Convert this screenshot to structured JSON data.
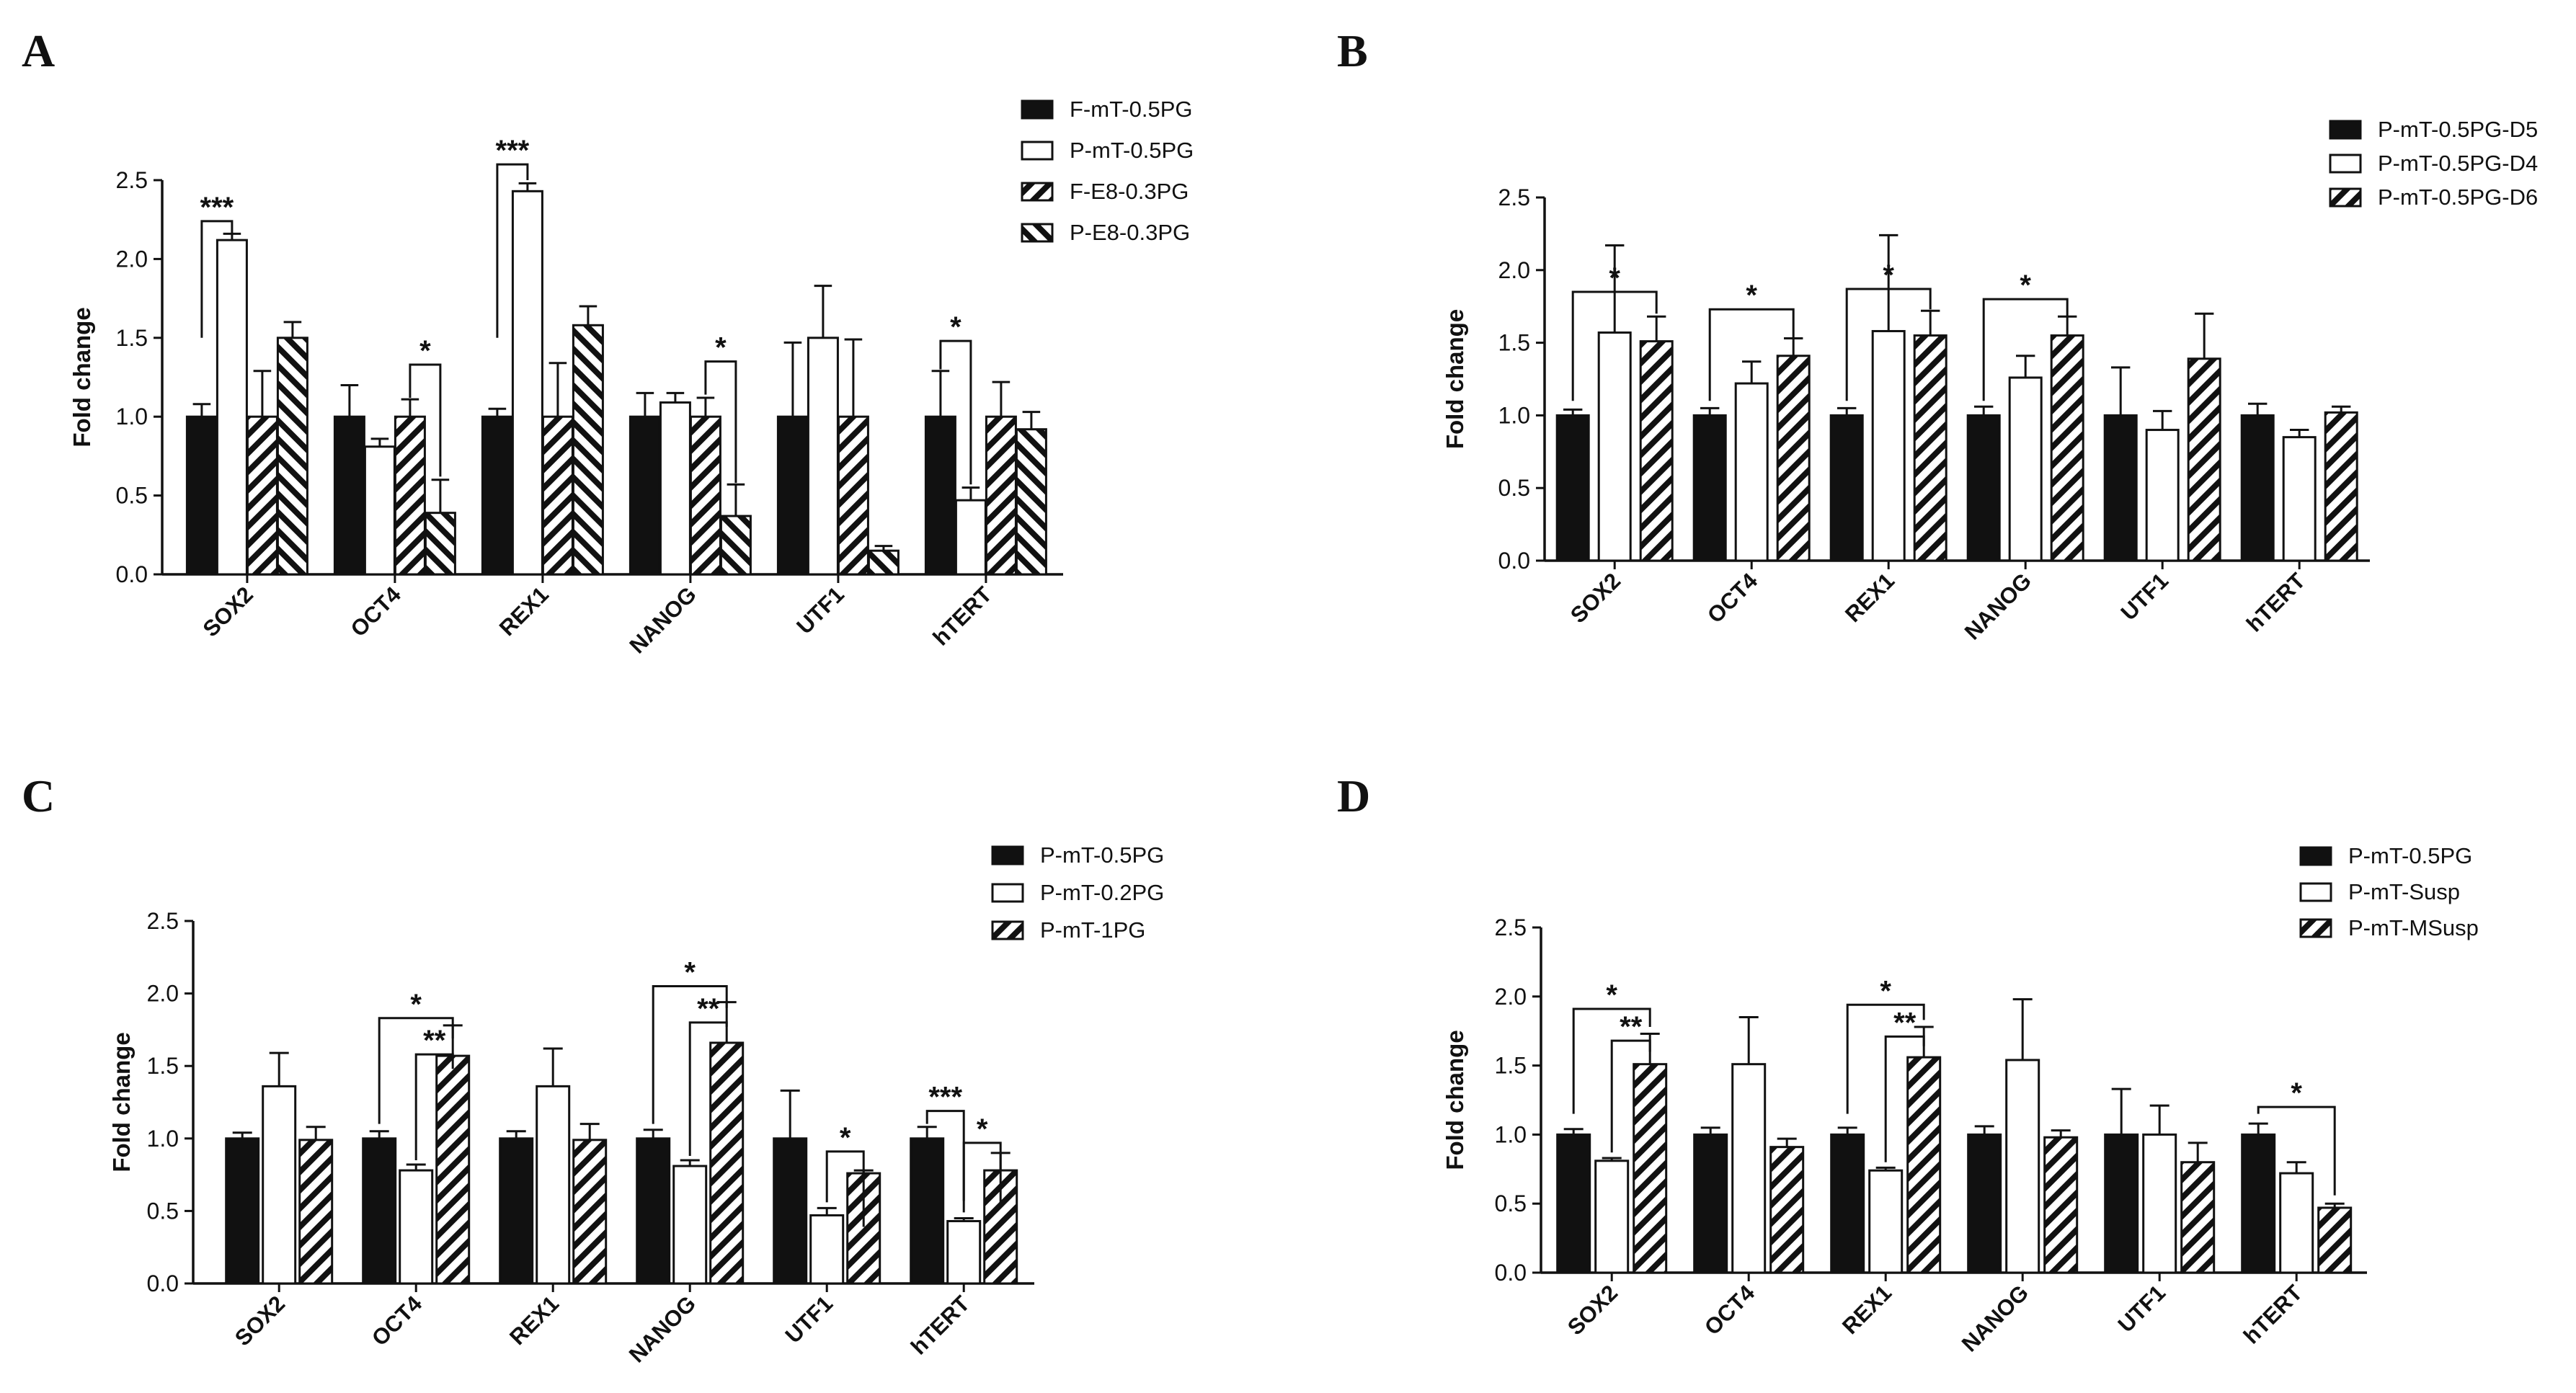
{
  "chart_data": [
    {
      "panel": "A",
      "type": "bar",
      "categories": [
        "SOX2",
        "OCT4",
        "REX1",
        "NANOG",
        "UTF1",
        "hTERT"
      ],
      "ylabel": "Fold change",
      "ylim": [
        0,
        2.5
      ],
      "yticks": [
        "0.0",
        "0.5",
        "1.0",
        "1.5",
        "2.0",
        "2.5"
      ],
      "legend_position": "top-right",
      "series": [
        {
          "name": "F-mT-0.5PG",
          "pattern": "solid",
          "values": [
            1.0,
            1.0,
            1.0,
            1.0,
            1.0,
            1.0
          ],
          "errors": [
            0.08,
            0.2,
            0.05,
            0.15,
            0.47,
            0.29
          ]
        },
        {
          "name": "P-mT-0.5PG",
          "pattern": "open",
          "values": [
            2.12,
            0.81,
            2.43,
            1.09,
            1.5,
            0.47
          ],
          "errors": [
            0.04,
            0.05,
            0.05,
            0.06,
            0.33,
            0.08
          ]
        },
        {
          "name": "F-E8-0.3PG",
          "pattern": "hatch-right",
          "values": [
            1.0,
            1.0,
            1.0,
            1.0,
            1.0,
            1.0
          ],
          "errors": [
            0.29,
            0.11,
            0.34,
            0.12,
            0.49,
            0.22
          ]
        },
        {
          "name": "P-E8-0.3PG",
          "pattern": "hatch-left",
          "values": [
            1.5,
            0.39,
            1.58,
            0.37,
            0.15,
            0.92
          ],
          "errors": [
            0.1,
            0.21,
            0.12,
            0.2,
            0.03,
            0.11
          ]
        }
      ],
      "annotations": [
        {
          "label": "***",
          "cat": 0,
          "from": 0,
          "to": 1,
          "h1": 1.5,
          "h2": 2.15,
          "y": 2.24
        },
        {
          "label": "*",
          "cat": 1,
          "from": 2,
          "to": 3,
          "h1": 1.12,
          "h2": 0.62,
          "y": 1.33
        },
        {
          "label": "***",
          "cat": 2,
          "from": 0,
          "to": 1,
          "h1": 1.5,
          "h2": 2.5,
          "y": 2.6
        },
        {
          "label": "*",
          "cat": 3,
          "from": 2,
          "to": 3,
          "h1": 1.14,
          "h2": 0.58,
          "y": 1.35
        },
        {
          "label": "*",
          "cat": 5,
          "from": 0,
          "to": 1,
          "h1": 1.3,
          "h2": 0.57,
          "y": 1.48
        }
      ]
    },
    {
      "panel": "B",
      "type": "bar",
      "categories": [
        "SOX2",
        "OCT4",
        "REX1",
        "NANOG",
        "UTF1",
        "hTERT"
      ],
      "ylabel": "Fold change",
      "ylim": [
        0,
        2.5
      ],
      "yticks": [
        "0.0",
        "0.5",
        "1.0",
        "1.5",
        "2.0",
        "2.5"
      ],
      "legend_position": "top-right",
      "series": [
        {
          "name": "P-mT-0.5PG-D5",
          "pattern": "solid",
          "values": [
            1.0,
            1.0,
            1.0,
            1.0,
            1.0,
            1.0
          ],
          "errors": [
            0.04,
            0.05,
            0.05,
            0.06,
            0.33,
            0.08
          ]
        },
        {
          "name": "P-mT-0.5PG-D4",
          "pattern": "open",
          "values": [
            1.57,
            1.22,
            1.58,
            1.26,
            0.9,
            0.85
          ],
          "errors": [
            0.6,
            0.15,
            0.66,
            0.15,
            0.13,
            0.05
          ]
        },
        {
          "name": "P-mT-0.5PG-D6",
          "pattern": "hatch-right",
          "values": [
            1.51,
            1.41,
            1.55,
            1.55,
            1.39,
            1.02
          ],
          "errors": [
            0.17,
            0.12,
            0.17,
            0.13,
            0.31,
            0.04
          ]
        }
      ],
      "annotations": [
        {
          "label": "*",
          "cat": 0,
          "from": 0,
          "to": 2,
          "h1": 1.1,
          "h2": 1.7,
          "y": 1.85
        },
        {
          "label": "*",
          "cat": 1,
          "from": 0,
          "to": 2,
          "h1": 1.1,
          "h2": 1.53,
          "y": 1.73
        },
        {
          "label": "*",
          "cat": 2,
          "from": 0,
          "to": 2,
          "h1": 1.1,
          "h2": 1.73,
          "y": 1.87
        },
        {
          "label": "*",
          "cat": 3,
          "from": 0,
          "to": 2,
          "h1": 1.1,
          "h2": 1.68,
          "y": 1.8
        }
      ]
    },
    {
      "panel": "C",
      "type": "bar",
      "categories": [
        "SOX2",
        "OCT4",
        "REX1",
        "NANOG",
        "UTF1",
        "hTERT"
      ],
      "ylabel": "Fold change",
      "ylim": [
        0,
        2.5
      ],
      "yticks": [
        "0.0",
        "0.5",
        "1.0",
        "1.5",
        "2.0",
        "2.5"
      ],
      "legend_position": "top-right",
      "series": [
        {
          "name": "P-mT-0.5PG",
          "pattern": "solid",
          "values": [
            1.0,
            1.0,
            1.0,
            1.0,
            1.0,
            1.0
          ],
          "errors": [
            0.04,
            0.05,
            0.05,
            0.06,
            0.33,
            0.08
          ]
        },
        {
          "name": "P-mT-0.2PG",
          "pattern": "open",
          "values": [
            1.36,
            0.78,
            1.36,
            0.81,
            0.47,
            0.43
          ],
          "errors": [
            0.23,
            0.04,
            0.26,
            0.04,
            0.05,
            0.02
          ]
        },
        {
          "name": "P-mT-1PG",
          "pattern": "hatch-right",
          "values": [
            0.99,
            1.57,
            0.99,
            1.66,
            0.76,
            0.78
          ],
          "errors": [
            0.09,
            0.21,
            0.11,
            0.28,
            0.02,
            0.12
          ]
        }
      ],
      "annotations": [
        {
          "label": "*",
          "cat": 1,
          "from": 0,
          "to": 2,
          "h1": 1.1,
          "h2": 1.69,
          "y": 1.83
        },
        {
          "label": "**",
          "cat": 1,
          "from": 1,
          "to": 2,
          "h1": 0.85,
          "h2": 1.48,
          "y": 1.58
        },
        {
          "label": "*",
          "cat": 3,
          "from": 0,
          "to": 2,
          "h1": 1.1,
          "h2": 1.9,
          "y": 2.05
        },
        {
          "label": "**",
          "cat": 3,
          "from": 1,
          "to": 2,
          "h1": 0.88,
          "h2": 1.77,
          "y": 1.8
        },
        {
          "label": "*",
          "cat": 4,
          "from": 1,
          "to": 2,
          "h1": 0.56,
          "h2": 0.39,
          "y": 0.91
        },
        {
          "label": "***",
          "cat": 5,
          "from": 0,
          "to": 1,
          "h1": 1.1,
          "h2": 0.57,
          "y": 1.19
        },
        {
          "label": "*",
          "cat": 5,
          "from": 1,
          "to": 2,
          "h1": 0.49,
          "h2": 0.56,
          "y": 0.97
        }
      ]
    },
    {
      "panel": "D",
      "type": "bar",
      "categories": [
        "SOX2",
        "OCT4",
        "REX1",
        "NANOG",
        "UTF1",
        "hTERT"
      ],
      "ylabel": "Fold change",
      "ylim": [
        0,
        2.5
      ],
      "yticks": [
        "0.0",
        "0.5",
        "1.0",
        "1.5",
        "2.0",
        "2.5"
      ],
      "legend_position": "top-right",
      "series": [
        {
          "name": "P-mT-0.5PG",
          "pattern": "solid",
          "values": [
            1.0,
            1.0,
            1.0,
            1.0,
            1.0,
            1.0
          ],
          "errors": [
            0.04,
            0.05,
            0.05,
            0.06,
            0.33,
            0.08
          ]
        },
        {
          "name": "P-mT-Susp",
          "pattern": "open",
          "values": [
            0.81,
            1.51,
            0.74,
            1.54,
            1.0,
            0.72
          ],
          "errors": [
            0.02,
            0.34,
            0.02,
            0.44,
            0.21,
            0.08
          ]
        },
        {
          "name": "P-mT-MSusp",
          "pattern": "hatch-right",
          "values": [
            1.51,
            0.91,
            1.56,
            0.98,
            0.8,
            0.47
          ],
          "errors": [
            0.22,
            0.06,
            0.22,
            0.05,
            0.14,
            0.03
          ]
        }
      ],
      "annotations": [
        {
          "label": "*",
          "cat": 0,
          "from": 0,
          "to": 2,
          "h1": 1.15,
          "h2": 1.78,
          "y": 1.91
        },
        {
          "label": "**",
          "cat": 0,
          "from": 1,
          "to": 2,
          "h1": 0.87,
          "h2": 1.6,
          "y": 1.68
        },
        {
          "label": "*",
          "cat": 2,
          "from": 0,
          "to": 2,
          "h1": 1.15,
          "h2": 1.83,
          "y": 1.94
        },
        {
          "label": "**",
          "cat": 2,
          "from": 1,
          "to": 2,
          "h1": 0.8,
          "h2": 1.64,
          "y": 1.71
        },
        {
          "label": "*",
          "cat": 5,
          "from": 0,
          "to": 2,
          "h1": 1.15,
          "h2": 0.56,
          "y": 1.2
        }
      ]
    }
  ]
}
